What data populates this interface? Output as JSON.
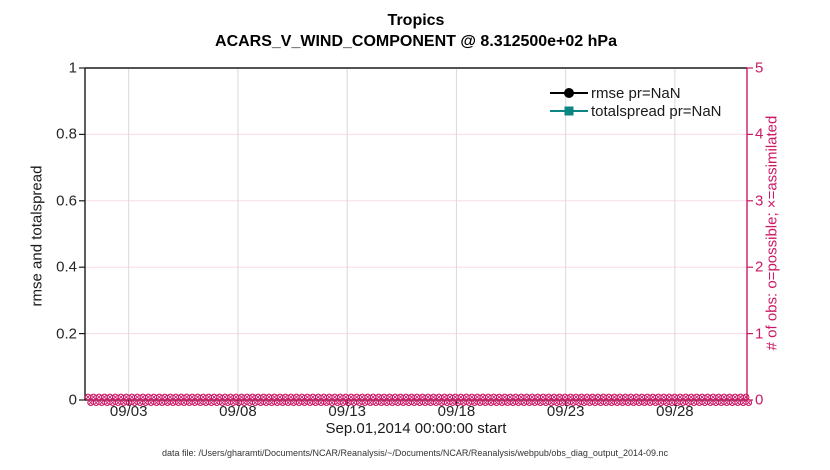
{
  "figure": {
    "title_line1": "Tropics",
    "title_line2": "ACARS_V_WIND_COMPONENT @ 8.312500e+02 hPa",
    "xlabel": "Sep.01,2014 00:00:00 start",
    "ylabel_left": "rmse and totalspread",
    "ylabel_right": "# of obs: o=possible; ×=assimilated",
    "caption": "data file: /Users/gharamti/Documents/NCAR/Reanalysis/~/Documents/NCAR/Reanalysis/webpub/obs_diag_output_2014-09.nc"
  },
  "chart_data": {
    "type": "line",
    "title": "Tropics",
    "subtitle": "ACARS_V_WIND_COMPONENT @ 8.312500e+02 hPa",
    "xlabel": "Sep.01,2014 00:00:00 start",
    "ylabel_left": "rmse and totalspread",
    "ylabel_right": "# of obs: o=possible; ×=assimilated",
    "x_axis": {
      "units": "days since 2014-09-01 00:00:00",
      "range": [
        0,
        30.3
      ],
      "tick_values": [
        2,
        7,
        12,
        17,
        22,
        27
      ],
      "tick_labels": [
        "09/03",
        "09/08",
        "09/13",
        "09/18",
        "09/23",
        "09/28"
      ],
      "grid": true,
      "grid_color": "#d9d9d9"
    },
    "y_left_axis": {
      "range": [
        0,
        1
      ],
      "tick_values": [
        0,
        0.2,
        0.4,
        0.6,
        0.8,
        1
      ],
      "tick_labels": [
        "0",
        "0.2",
        "0.4",
        "0.6",
        "0.8",
        "1"
      ],
      "color": "#1a1a1a"
    },
    "y_right_axis": {
      "range": [
        0,
        5
      ],
      "tick_values": [
        0,
        1,
        2,
        3,
        4,
        5
      ],
      "tick_labels": [
        "0",
        "1",
        "2",
        "3",
        "4",
        "5"
      ],
      "color": "#cc1966",
      "grid": true,
      "grid_color": "#f9dcea"
    },
    "series": [
      {
        "label": "rmse pr=NaN",
        "color": "#000000",
        "marker": "circle",
        "values_all": "NaN",
        "plotted": false
      },
      {
        "label": "totalspread pr=NaN",
        "color": "#0e8585",
        "marker": "square",
        "values_all": "NaN",
        "plotted": false
      }
    ],
    "obs_counts": {
      "color": "#cc1966",
      "possible_marker": "o",
      "assimilated_marker": "x",
      "time_days": {
        "start": 0,
        "step": 0.25,
        "count": 121
      },
      "possible_values_all": 0,
      "assimilated_values_all": 0
    },
    "legend": {
      "position": "top-right-inside",
      "box": false,
      "items": [
        "rmse pr=NaN",
        "totalspread pr=NaN"
      ]
    }
  }
}
